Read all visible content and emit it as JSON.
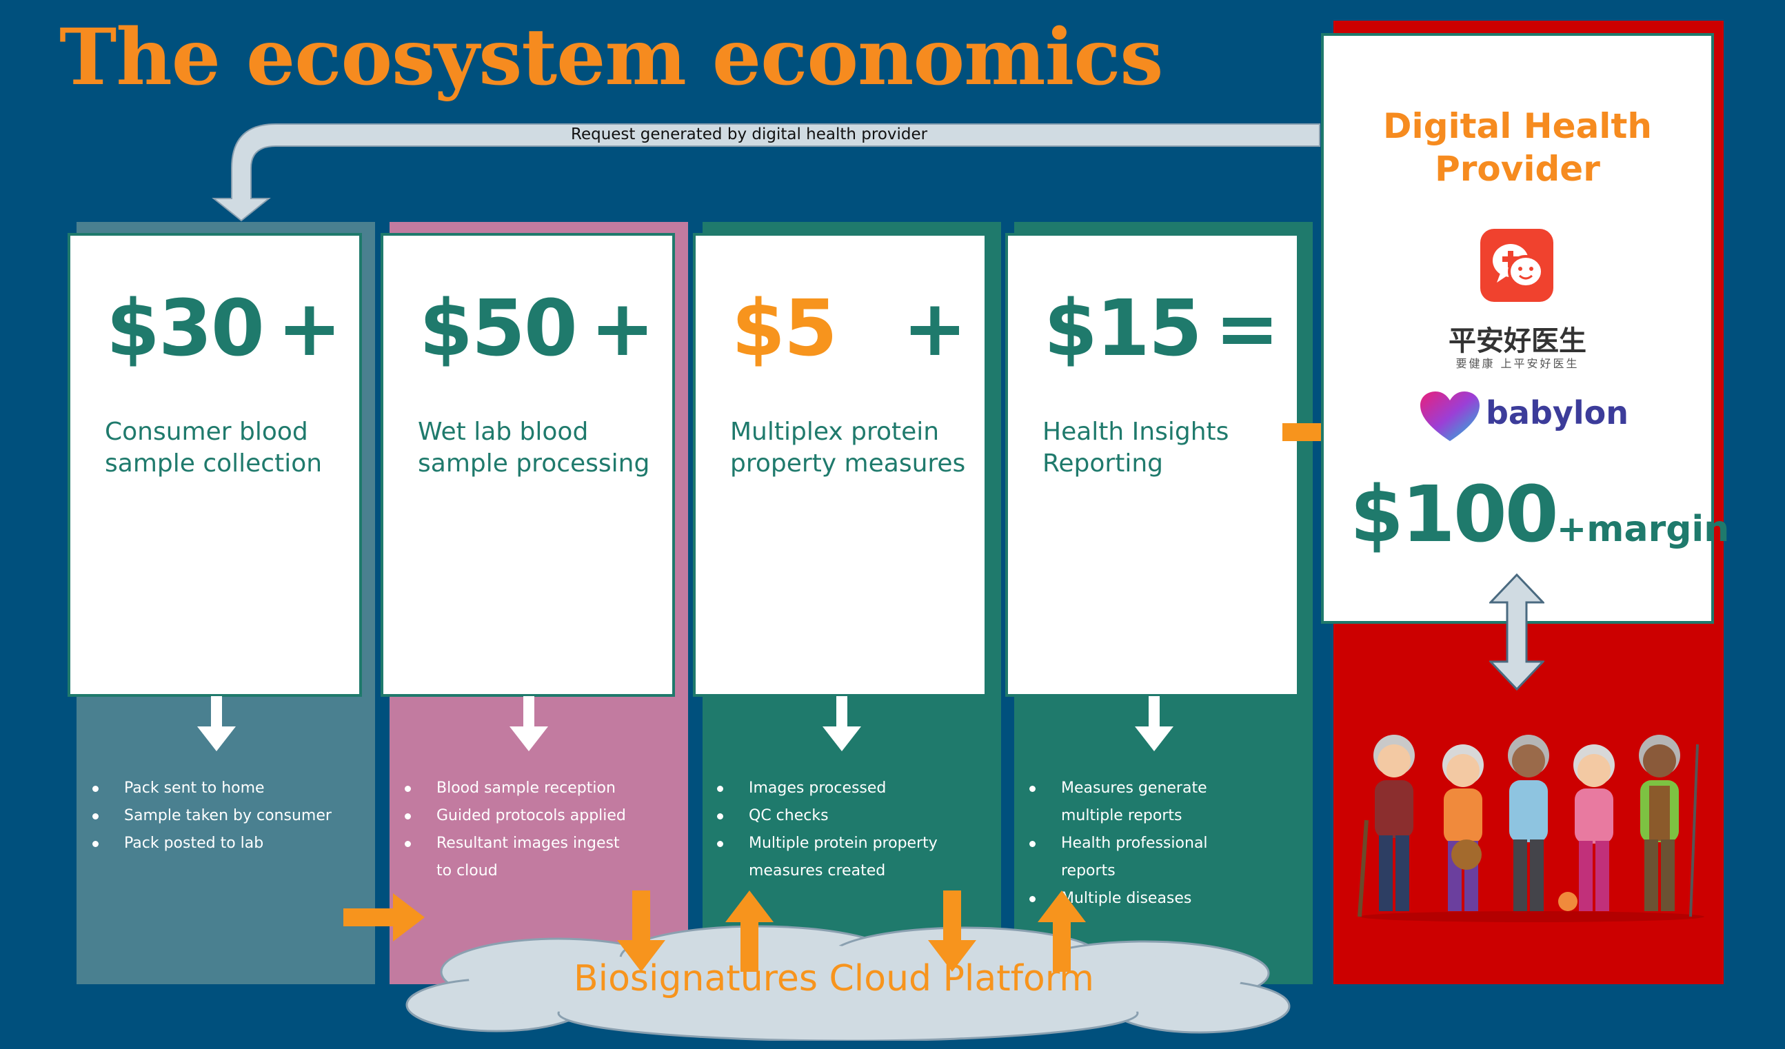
{
  "title": "The ecosystem economics",
  "request_label": "Request generated by digital health provider",
  "stages": [
    {
      "price": "$30",
      "operator": "+",
      "description": "Consumer blood sample collection",
      "column_color": "#4a8090",
      "bullets": [
        "Pack sent to home",
        "Sample taken by consumer",
        "Pack posted to lab"
      ]
    },
    {
      "price": "$50",
      "operator": "+",
      "description": "Wet lab blood sample processing",
      "column_color": "#c27ba0",
      "bullets": [
        "Blood sample reception",
        "Guided protocols applied",
        "Resultant images ingest to cloud"
      ]
    },
    {
      "price": "$5",
      "operator": "+",
      "description": "Multiplex protein property measures",
      "column_color": "#1f7a6c",
      "bullets": [
        "Images processed",
        "QC checks",
        "Multiple protein property measures created"
      ]
    },
    {
      "price": "$15",
      "operator": "=",
      "description": "Health Insights Reporting",
      "column_color": "#1f7a6c",
      "bullets": [
        "Measures generate multiple reports",
        "Health professional reports",
        "Multiple diseases"
      ]
    }
  ],
  "provider": {
    "title": "Digital Health Provider",
    "app_cn_name": "平安好医生",
    "app_cn_sub": "要健康 上平安好医生",
    "babylon_label": "babylon",
    "price": "$100",
    "margin": "+margin"
  },
  "cloud_label": "Biosignatures Cloud Platform",
  "colors": {
    "background": "#00507d",
    "accent_orange": "#f68b1f",
    "teal": "#1f7a6c",
    "provider_panel": "#cc0000",
    "cloud": "#d0dbe2"
  }
}
